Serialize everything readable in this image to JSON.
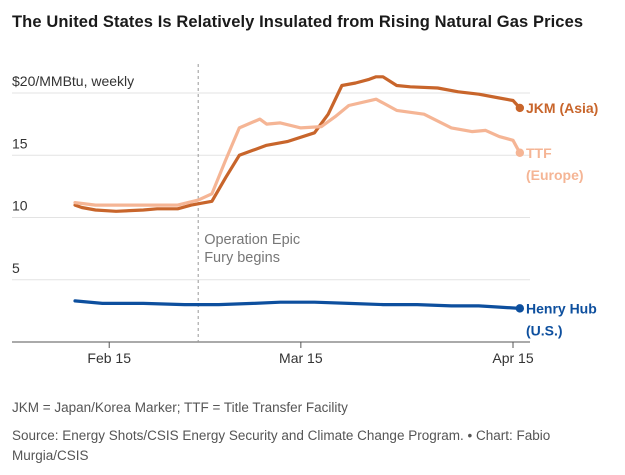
{
  "title": "The United States Is Relatively Insulated from Rising Natural Gas Prices",
  "footnote": "JKM = Japan/Korea Marker; TTF = Title Transfer Facility",
  "source": "Source: Energy Shots/CSIS Energy Security and Climate Change Program. • Chart: Fabio Murgia/CSIS",
  "chart_data": {
    "type": "line",
    "ylabel": "$20/MMBtu, weekly",
    "ylim": [
      0,
      21.5
    ],
    "y_ticks": [
      {
        "value": 20,
        "label": "$20/MMBtu, weekly"
      },
      {
        "value": 15,
        "label": "15"
      },
      {
        "value": 10,
        "label": "10"
      },
      {
        "value": 5,
        "label": "5"
      }
    ],
    "x_ticks": [
      {
        "date": "2026-02-15",
        "label": "Feb 15"
      },
      {
        "date": "2026-03-15",
        "label": "Mar 15"
      },
      {
        "date": "2026-04-15",
        "label": "Apr 15"
      }
    ],
    "xlim": [
      "2026-02-10",
      "2026-04-15"
    ],
    "grid": true,
    "annotation": {
      "date": "2026-02-28",
      "lines": [
        "Operation Epic",
        "Fury begins"
      ]
    },
    "series": [
      {
        "name": "JKM (Asia)",
        "label_lines": [
          "JKM (Asia)"
        ],
        "color": "#c8652b",
        "values": [
          [
            "2026-02-10",
            11.0
          ],
          [
            "2026-02-11",
            10.8
          ],
          [
            "2026-02-13",
            10.6
          ],
          [
            "2026-02-16",
            10.5
          ],
          [
            "2026-02-20",
            10.6
          ],
          [
            "2026-02-22",
            10.7
          ],
          [
            "2026-02-25",
            10.7
          ],
          [
            "2026-02-27",
            11.0
          ],
          [
            "2026-03-02",
            11.3
          ],
          [
            "2026-03-04",
            13.2
          ],
          [
            "2026-03-06",
            15.0
          ],
          [
            "2026-03-08",
            15.4
          ],
          [
            "2026-03-10",
            15.8
          ],
          [
            "2026-03-13",
            16.1
          ],
          [
            "2026-03-17",
            16.8
          ],
          [
            "2026-03-19",
            18.3
          ],
          [
            "2026-03-21",
            20.6
          ],
          [
            "2026-03-23",
            20.8
          ],
          [
            "2026-03-25",
            21.1
          ],
          [
            "2026-03-26",
            21.3
          ],
          [
            "2026-03-27",
            21.3
          ],
          [
            "2026-03-29",
            20.6
          ],
          [
            "2026-03-31",
            20.5
          ],
          [
            "2026-04-04",
            20.4
          ],
          [
            "2026-04-07",
            20.1
          ],
          [
            "2026-04-10",
            19.9
          ],
          [
            "2026-04-13",
            19.6
          ],
          [
            "2026-04-15",
            19.4
          ],
          [
            "2026-04-16",
            18.8
          ]
        ]
      },
      {
        "name": "TTF (Europe)",
        "label_lines": [
          "TTF",
          "(Europe)"
        ],
        "color": "#f5b595",
        "values": [
          [
            "2026-02-10",
            11.2
          ],
          [
            "2026-02-13",
            11.0
          ],
          [
            "2026-02-16",
            11.0
          ],
          [
            "2026-02-20",
            11.0
          ],
          [
            "2026-02-23",
            11.0
          ],
          [
            "2026-02-25",
            11.0
          ],
          [
            "2026-02-28",
            11.4
          ],
          [
            "2026-03-02",
            11.9
          ],
          [
            "2026-03-04",
            14.6
          ],
          [
            "2026-03-06",
            17.2
          ],
          [
            "2026-03-09",
            17.9
          ],
          [
            "2026-03-10",
            17.5
          ],
          [
            "2026-03-12",
            17.6
          ],
          [
            "2026-03-15",
            17.2
          ],
          [
            "2026-03-18",
            17.3
          ],
          [
            "2026-03-20",
            18.1
          ],
          [
            "2026-03-22",
            19.0
          ],
          [
            "2026-03-26",
            19.5
          ],
          [
            "2026-03-29",
            18.6
          ],
          [
            "2026-04-02",
            18.3
          ],
          [
            "2026-04-06",
            17.2
          ],
          [
            "2026-04-09",
            16.9
          ],
          [
            "2026-04-11",
            17.0
          ],
          [
            "2026-04-13",
            16.5
          ],
          [
            "2026-04-15",
            16.2
          ],
          [
            "2026-04-16",
            15.2
          ]
        ]
      },
      {
        "name": "Henry Hub (U.S.)",
        "label_lines": [
          "Henry Hub",
          "(U.S.)"
        ],
        "color": "#0d4f9e",
        "values": [
          [
            "2026-02-10",
            3.3
          ],
          [
            "2026-02-14",
            3.1
          ],
          [
            "2026-02-20",
            3.1
          ],
          [
            "2026-02-26",
            3.0
          ],
          [
            "2026-03-03",
            3.0
          ],
          [
            "2026-03-08",
            3.1
          ],
          [
            "2026-03-12",
            3.2
          ],
          [
            "2026-03-17",
            3.2
          ],
          [
            "2026-03-22",
            3.1
          ],
          [
            "2026-03-27",
            3.0
          ],
          [
            "2026-04-01",
            3.0
          ],
          [
            "2026-04-06",
            2.9
          ],
          [
            "2026-04-10",
            2.9
          ],
          [
            "2026-04-13",
            2.8
          ],
          [
            "2026-04-16",
            2.7
          ]
        ]
      }
    ]
  }
}
